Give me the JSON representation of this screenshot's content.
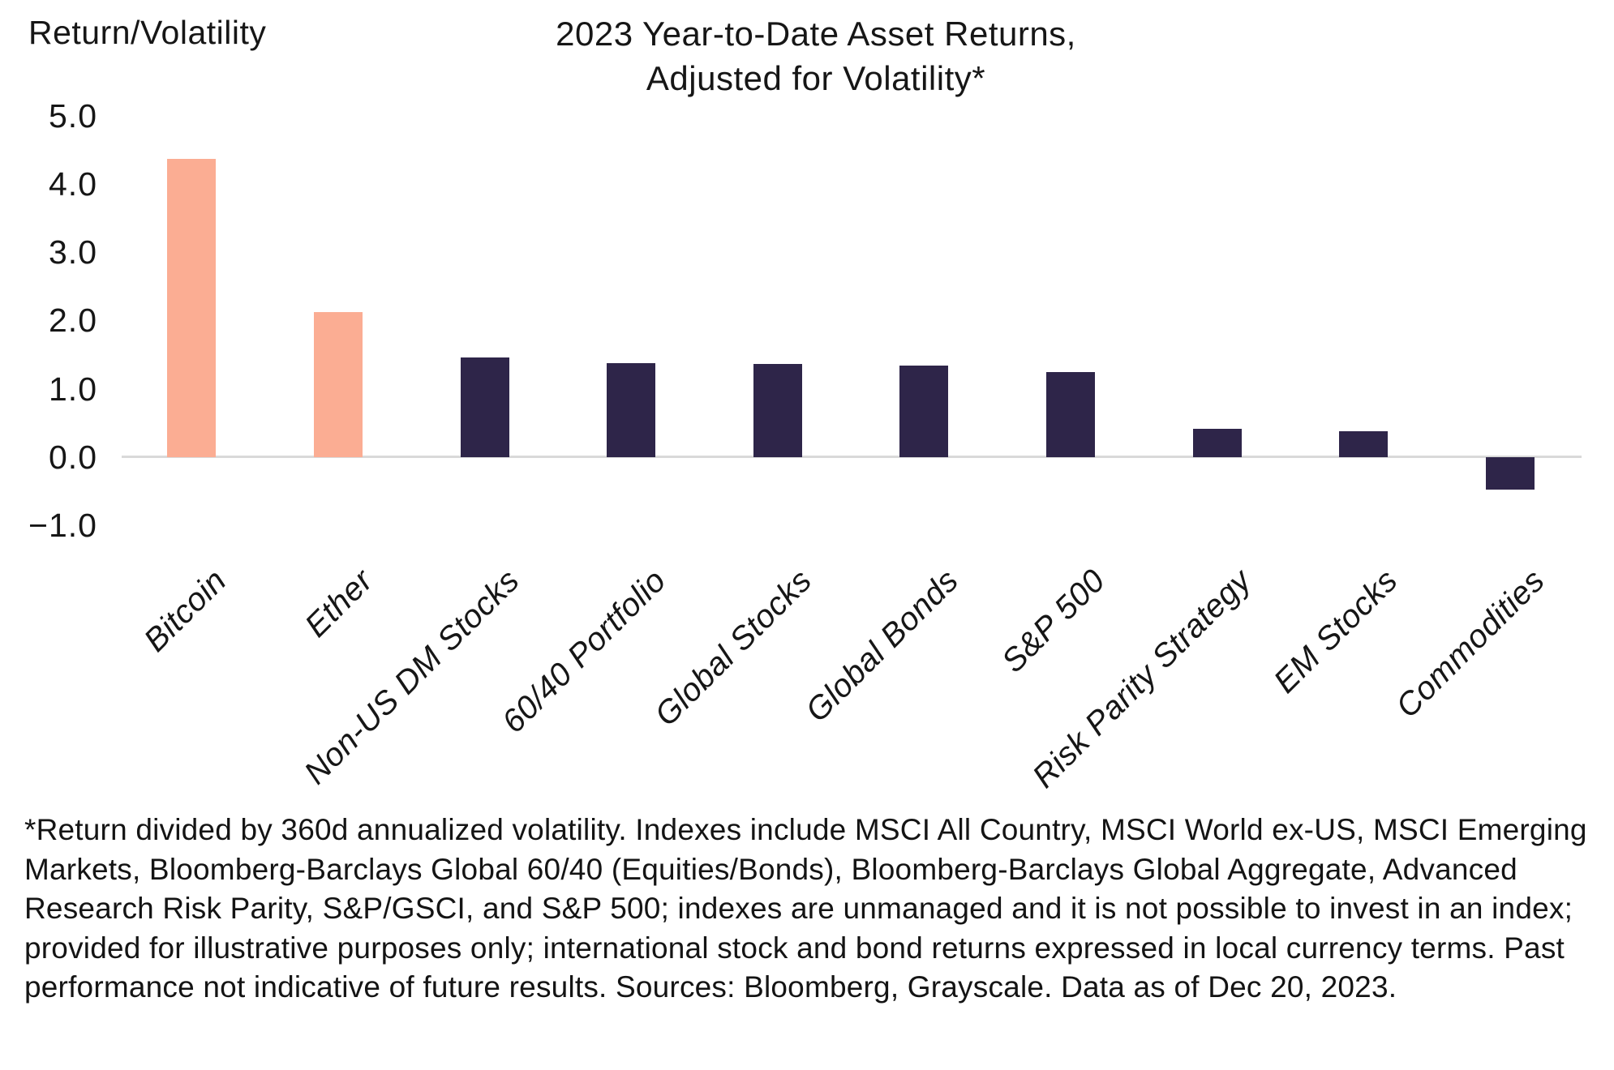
{
  "title": {
    "line1": "2023 Year-to-Date Asset Returns,",
    "line2": "Adjusted for Volatility*"
  },
  "y_axis_title": "Return/Volatility",
  "chart_data": {
    "type": "bar",
    "title": "2023 Year-to-Date Asset Returns, Adjusted for Volatility*",
    "ylabel": "Return/Volatility",
    "xlabel": "",
    "categories": [
      "Bitcoin",
      "Ether",
      "Non-US DM Stocks",
      "60/40 Portfolio",
      "Global Stocks",
      "Global Bonds",
      "S&P 500",
      "Risk Parity Strategy",
      "EM Stocks",
      "Commodities"
    ],
    "values": [
      4.37,
      2.12,
      1.46,
      1.38,
      1.36,
      1.34,
      1.25,
      0.41,
      0.38,
      -0.47
    ],
    "bar_colors": [
      "#FBAD93",
      "#FBAD93",
      "#2E2549",
      "#2E2549",
      "#2E2549",
      "#2E2549",
      "#2E2549",
      "#2E2549",
      "#2E2549",
      "#2E2549"
    ],
    "highlight_color": "#FBAD93",
    "base_color": "#2E2549",
    "yticks": [
      5.0,
      4.0,
      3.0,
      2.0,
      1.0,
      0.0,
      -1.0
    ],
    "ytick_labels": [
      "5.0",
      "4.0",
      "3.0",
      "2.0",
      "1.0",
      "0.0",
      "−1.0"
    ],
    "ylim": [
      -1.0,
      5.0
    ],
    "grid": false,
    "legend": "none",
    "zero_line_color": "#D9D9D9",
    "xtick_rotation_deg": 45,
    "xtick_style": "italic"
  },
  "footnote": "*Return divided by 360d annualized volatility. Indexes include MSCI All Country, MSCI World ex-US, MSCI Emerging Markets, Bloomberg-Barclays Global 60/40 (Equities/Bonds), Bloomberg-Barclays Global Aggregate, Advanced Research Risk Parity, S&P/GSCI, and S&P 500; indexes are unmanaged and it is not possible to invest in an index; provided for illustrative purposes only; international stock and bond returns expressed in local currency terms. Past performance not indicative of future results. Sources: Bloomberg, Grayscale. Data as of Dec 20, 2023."
}
